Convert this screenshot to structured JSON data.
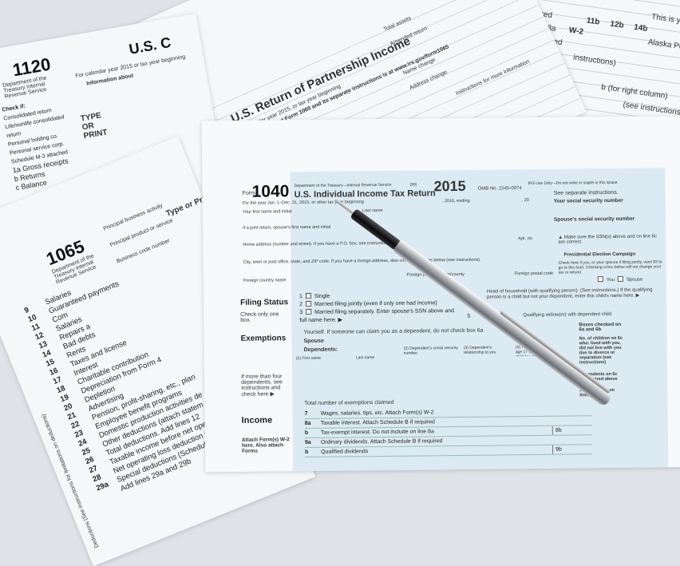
{
  "form_1120": {
    "number": "1120",
    "dept": "Department of the Treasury Internal Revenue Service",
    "header": "U.S. C",
    "subtitle": "For calendar year 2015 or tax year beginning",
    "info": "Information about",
    "type_label": "TYPE OR PRINT",
    "lines": [
      "Check if:",
      "Consolidated return",
      "Life/nonlife consolidated return",
      "Personal holding co.",
      "Personal service corp.",
      "Schedule M-3 attached",
      "1a Gross receipts",
      "b Returns",
      "c Balance"
    ]
  },
  "form_partnership": {
    "title": "U.S. Return of Partnership Income",
    "subtitle": "For calendar year 2015, or tax year beginning",
    "note": "Information about Form 1065 and its separate instructions is at www.irs.gov/form1065",
    "fields": [
      "Address change",
      "Amended return",
      "Total assets",
      "Instructions for more information",
      "Name change"
    ]
  },
  "form_1065": {
    "number": "1065",
    "dept": "Department of the Treasury Internal Revenue Service",
    "labels": [
      "Principal business activity",
      "Principal product or service",
      "Business code number",
      "Type or Print"
    ],
    "lines": [
      {
        "n": "9",
        "t": "Salaries"
      },
      {
        "n": "10",
        "t": "Guaranteed payments"
      },
      {
        "n": "11",
        "t": "Com"
      },
      {
        "n": "12",
        "t": "Salaries"
      },
      {
        "n": "13",
        "t": "Repairs a"
      },
      {
        "n": "14",
        "t": "Bad debts"
      },
      {
        "n": "15",
        "t": "Rents"
      },
      {
        "n": "16",
        "t": "Taxes and license"
      },
      {
        "n": "17",
        "t": "Interest"
      },
      {
        "n": "18",
        "t": "Charitable contribution"
      },
      {
        "n": "19",
        "t": "Depreciation from Form 4"
      },
      {
        "n": "20",
        "t": "Depletion"
      },
      {
        "n": "21",
        "t": "Advertising"
      },
      {
        "n": "22",
        "t": "Pension, profit-sharing, etc., plan"
      },
      {
        "n": "23",
        "t": "Employee benefit programs"
      },
      {
        "n": "24",
        "t": "Domestic production activities de"
      },
      {
        "n": "25",
        "t": "Other deductions (attach statem"
      },
      {
        "n": "26",
        "t": "Total deductions. Add lines 12"
      },
      {
        "n": "27",
        "t": "Taxable income before net ope"
      },
      {
        "n": "28",
        "t": "Net operating loss deduction ("
      },
      {
        "n": "29a",
        "t": "Special deductions (Schedule"
      },
      {
        "n": "",
        "t": "Add lines 29a and 29b"
      }
    ],
    "side_note": "Deductions (See instructions for limitations on deductions)"
  },
  "form_w2_top": {
    "texts": [
      "W-2",
      "required",
      "on line 8a",
      "B if required",
      "instructions)",
      "11b",
      "12b",
      "14b",
      "Alaska Permanent Fu",
      "This is your total",
      "b (for right column)",
      "(see instructions)"
    ]
  },
  "form_1040": {
    "form_label": "Form",
    "number": "1040",
    "dept": "Department of the Treasury—Internal Revenue Service",
    "code": "(99)",
    "title": "U.S. Individual Income Tax Return",
    "year": "2015",
    "omb": "OMB No. 1545-0074",
    "irs_use": "IRS Use Only—Do not write or staple in this space.",
    "year_line": "For the year Jan. 1–Dec. 31, 2015, or other tax year beginning",
    "ending": ", 2015, ending",
    "ending_year": ", 20",
    "see_instructions": "See separate instructions.",
    "first_name": "Your first name and initial",
    "last_name": "Last name",
    "ssn": "Your social security number",
    "spouse_name": "If a joint return, spouse's first name and initial",
    "spouse_ssn": "Spouse's social security number",
    "address": "Home address (number and street). If you have a P.O. box, see instructions.",
    "apt": "Apt. no.",
    "ssn_warning": "Make sure the SSN(s) above and on line 6c are correct.",
    "city": "City, town or post office, state, and ZIP code. If you have a foreign address, also complete spaces below (see instructions).",
    "pec_title": "Presidential Election Campaign",
    "pec_text": "Check here if you, or your spouse if filing jointly, want $3 to go to this fund. Checking a box below will not change your tax or refund.",
    "you": "You",
    "spouse": "Spouse",
    "foreign_country": "Foreign country name",
    "foreign_province": "Foreign province/state/county",
    "foreign_postal": "Foreign postal code",
    "filing_status": {
      "label": "Filing Status",
      "hint": "Check only one box.",
      "options": [
        {
          "n": "1",
          "t": "Single"
        },
        {
          "n": "2",
          "t": "Married filing jointly (even if only one had income)"
        },
        {
          "n": "3",
          "t": "Married filing separately. Enter spouse's SSN above and full name here. ▶"
        }
      ],
      "opt4": "Head of household (with qualifying person). (See instructions.) If the qualifying person is a child but not your dependent, enter this child's name here. ▶",
      "opt5_n": "5",
      "opt5": "Qualifying widow(er) with dependent child"
    },
    "exemptions": {
      "label": "Exemptions",
      "yourself": "Yourself. If someone can claim you as a dependent, do not check box 6a",
      "spouse": "Spouse",
      "dependents": "Dependents:",
      "cols": [
        "(1) First name",
        "Last name",
        "(2) Dependent's social security number",
        "(3) Dependent's relationship to you",
        "(4) ✓ if child under age 17 qualifying for child tax credit"
      ],
      "more": "If more than four dependents, see instructions and check here ▶",
      "total": "Total number of exemptions claimed",
      "boxes": "Boxes checked on 6a and 6b",
      "children": "No. of children on 6c who: lived with you, did not live with you due to divorce or separation (see instructions)",
      "dep_6c": "Dependents on 6c not entered above",
      "add": "Add numbers on lines above"
    },
    "income": {
      "label": "Income",
      "attach": "Attach Form(s) W-2 here. Also attach Forms",
      "lines": [
        {
          "n": "7",
          "t": "Wages, salaries, tips, etc. Attach Form(s) W-2"
        },
        {
          "n": "8a",
          "t": "Taxable interest. Attach Schedule B if required"
        },
        {
          "n": "b",
          "t": "Tax-exempt interest. Do not include on line 8a",
          "box": "8b"
        },
        {
          "n": "9a",
          "t": "Ordinary dividends. Attach Schedule B if required"
        },
        {
          "n": "b",
          "t": "Qualified dividends",
          "box": "9b"
        }
      ]
    }
  },
  "colors": {
    "form_blue": "#dcebf3",
    "paper": "#f6f7f9",
    "background": "#dfe3e8",
    "pen_grip": "#111111",
    "pen_barrel": "#a9adb1"
  }
}
